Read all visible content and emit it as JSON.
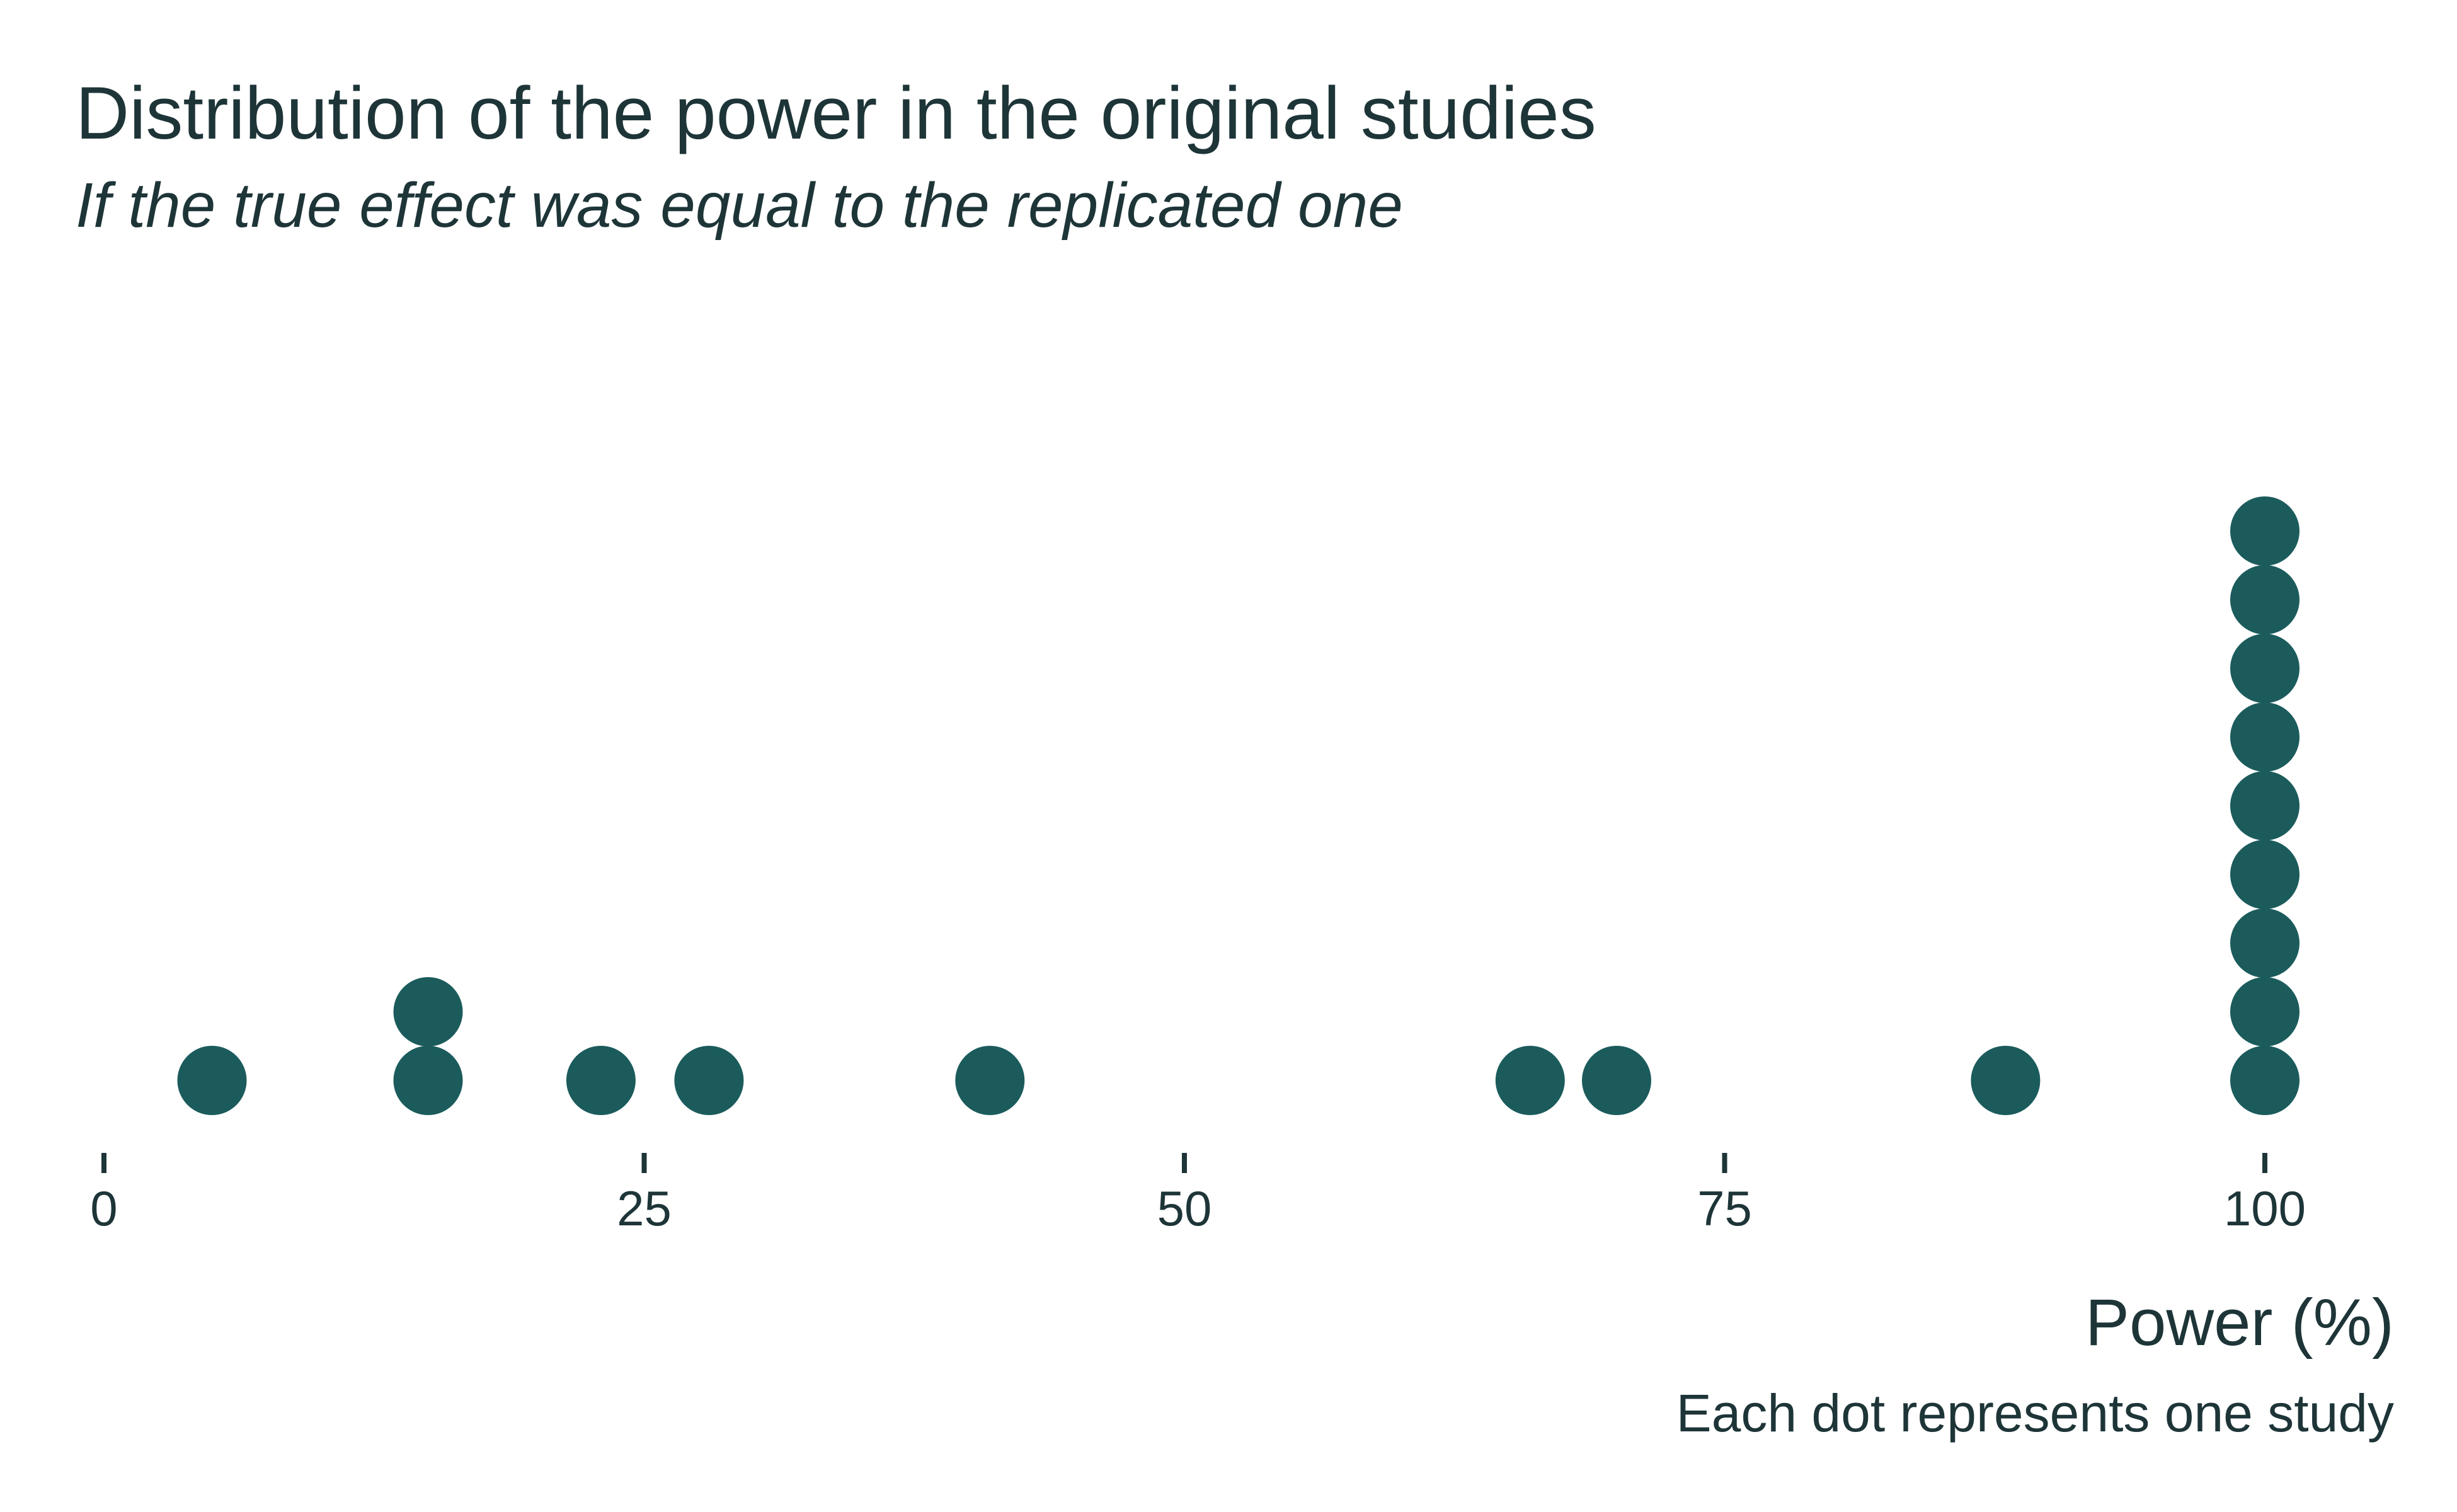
{
  "chart_data": {
    "type": "dotplot",
    "title": "Distribution of the power in the original studies",
    "subtitle": "If the true effect was equal to the replicated one",
    "xlabel": "Power (%)",
    "caption": "Each dot represents one study",
    "xlim": [
      0,
      100
    ],
    "x_ticks": [
      0,
      25,
      50,
      75,
      100
    ],
    "x_tick_labels": [
      "0",
      "25",
      "50",
      "75",
      "100"
    ],
    "grid": false,
    "dot_color": "#1b5b5c",
    "values": [
      5,
      15,
      15,
      23,
      28,
      41,
      66,
      70,
      88,
      100,
      100,
      100,
      100,
      100,
      100,
      100,
      100,
      100
    ]
  }
}
